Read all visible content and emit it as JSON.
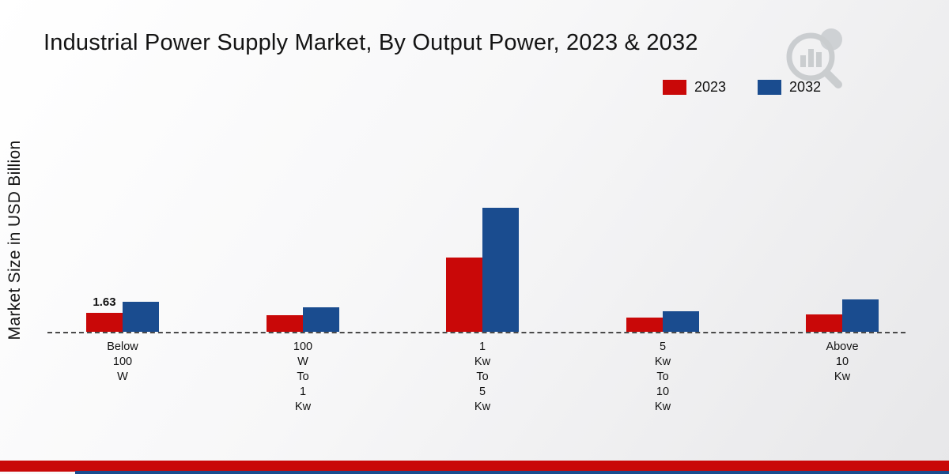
{
  "title": "Industrial Power Supply Market, By Output Power, 2023 & 2032",
  "ylabel": "Market Size in USD Billion",
  "legend": {
    "items": [
      {
        "label": "2023",
        "color": "#c90808"
      },
      {
        "label": "2032",
        "color": "#1a4c8f"
      }
    ]
  },
  "brand": {
    "logo": "bar-chart-magnifier-watermark"
  },
  "footer": {
    "red_band_color": "#c90808",
    "blue_band_color": "#1a4c8f"
  },
  "chart_data": {
    "type": "bar",
    "title": "Industrial Power Supply Market, By Output Power, 2023 & 2032",
    "xlabel": "",
    "ylabel": "Market Size in USD Billion",
    "ylim": [
      0,
      12
    ],
    "grid": false,
    "baseline_style": "dashed",
    "legend_position": "top-right",
    "categories": [
      "Below\n100\nW",
      "100\nW\nTo\n1\nKw",
      "1\nKw\nTo\n5\nKw",
      "5\nKw\nTo\n10\nKw",
      "Above\n10\nKw"
    ],
    "series": [
      {
        "name": "2023",
        "color": "#c90808",
        "values": [
          1.63,
          1.4,
          6.4,
          1.2,
          1.5
        ]
      },
      {
        "name": "2032",
        "color": "#1a4c8f",
        "values": [
          2.6,
          2.1,
          10.7,
          1.8,
          2.8
        ]
      }
    ],
    "annotations": [
      {
        "text": "1.63",
        "series": "2023",
        "category_index": 0
      }
    ]
  }
}
